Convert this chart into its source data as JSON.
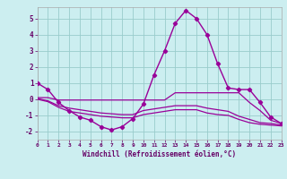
{
  "xlabel": "Windchill (Refroidissement éolien,°C)",
  "xlim": [
    0,
    23
  ],
  "ylim": [
    -2.5,
    5.7
  ],
  "yticks": [
    -2,
    -1,
    0,
    1,
    2,
    3,
    4,
    5
  ],
  "xticks": [
    0,
    1,
    2,
    3,
    4,
    5,
    6,
    7,
    8,
    9,
    10,
    11,
    12,
    13,
    14,
    15,
    16,
    17,
    18,
    19,
    20,
    21,
    22,
    23
  ],
  "bg_color": "#cceef0",
  "grid_color": "#99cccc",
  "line_color": "#990099",
  "series_main": {
    "x": [
      0,
      1,
      2,
      3,
      4,
      5,
      6,
      7,
      8,
      9,
      10,
      11,
      12,
      13,
      14,
      15,
      16,
      17,
      18,
      19,
      20,
      21,
      22,
      23
    ],
    "y": [
      1.0,
      0.6,
      -0.2,
      -0.7,
      -1.1,
      -1.3,
      -1.7,
      -1.9,
      -1.7,
      -1.2,
      -0.3,
      1.5,
      3.0,
      4.7,
      5.5,
      5.0,
      4.0,
      2.2,
      0.7,
      0.6,
      0.6,
      -0.2,
      -1.1,
      -1.5
    ]
  },
  "series_band": [
    {
      "x": [
        0,
        1,
        2,
        3,
        4,
        5,
        6,
        7,
        8,
        9,
        10,
        11,
        12,
        13,
        14,
        15,
        16,
        17,
        18,
        19,
        20,
        21,
        22,
        23
      ],
      "y": [
        0.1,
        0.1,
        -0.05,
        -0.05,
        -0.05,
        -0.05,
        -0.05,
        -0.05,
        -0.05,
        -0.05,
        -0.05,
        -0.05,
        -0.05,
        0.4,
        0.4,
        0.4,
        0.4,
        0.4,
        0.4,
        0.4,
        -0.2,
        -0.7,
        -1.3,
        -1.5
      ]
    },
    {
      "x": [
        0,
        1,
        2,
        3,
        4,
        5,
        6,
        7,
        8,
        9,
        10,
        11,
        12,
        13,
        14,
        15,
        16,
        17,
        18,
        19,
        20,
        21,
        22,
        23
      ],
      "y": [
        0.05,
        -0.1,
        -0.4,
        -0.55,
        -0.65,
        -0.75,
        -0.85,
        -0.9,
        -0.95,
        -0.95,
        -0.7,
        -0.6,
        -0.5,
        -0.4,
        -0.4,
        -0.4,
        -0.55,
        -0.65,
        -0.75,
        -1.05,
        -1.25,
        -1.45,
        -1.5,
        -1.6
      ]
    },
    {
      "x": [
        0,
        1,
        2,
        3,
        4,
        5,
        6,
        7,
        8,
        9,
        10,
        11,
        12,
        13,
        14,
        15,
        16,
        17,
        18,
        19,
        20,
        21,
        22,
        23
      ],
      "y": [
        0.0,
        -0.15,
        -0.5,
        -0.75,
        -0.85,
        -0.95,
        -1.05,
        -1.1,
        -1.15,
        -1.15,
        -0.95,
        -0.85,
        -0.75,
        -0.65,
        -0.65,
        -0.65,
        -0.85,
        -0.95,
        -1.0,
        -1.25,
        -1.45,
        -1.55,
        -1.6,
        -1.65
      ]
    }
  ]
}
